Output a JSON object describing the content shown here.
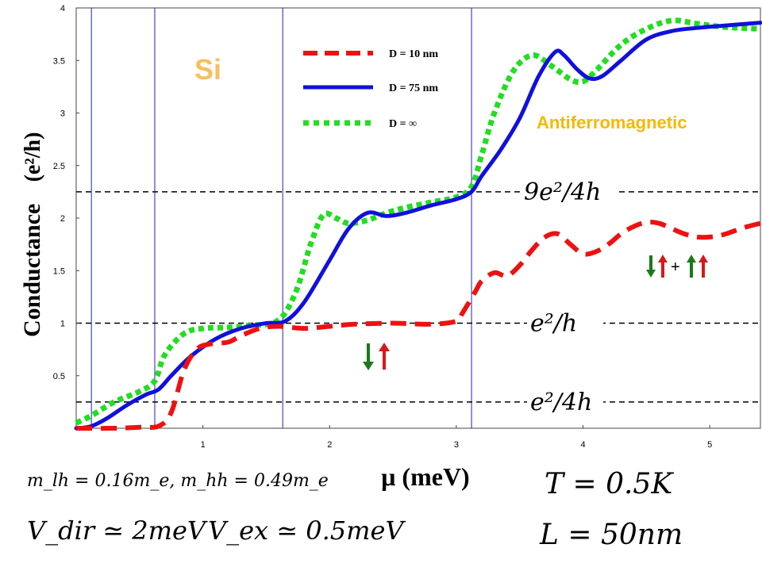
{
  "chart_data": {
    "type": "line",
    "ylabel": "Conductance",
    "ylabel_unit": "(e²/h)",
    "xlabel": "μ (meV)",
    "xlim": [
      0,
      5.4
    ],
    "ylim": [
      0,
      4
    ],
    "x_ticks": [
      1,
      2,
      3,
      4,
      5
    ],
    "y_ticks": [
      0.5,
      1,
      1.5,
      2,
      2.5,
      3,
      3.5,
      4
    ],
    "vertical_lines_x": [
      0.12,
      0.62,
      1.63,
      3.12
    ],
    "horizontal_lines": [
      {
        "y": 0.25,
        "label": "e²/4h"
      },
      {
        "y": 1.0,
        "label": "e²/h"
      },
      {
        "y": 2.25,
        "label": "9e²/4h"
      }
    ],
    "material_label": "Si",
    "phase_label": "Antiferromagnetic",
    "legend_position": "top-center",
    "series": [
      {
        "name": "D = 10 nm",
        "color": "#ee1111",
        "style": "dashed",
        "x": [
          0,
          0.3,
          0.5,
          0.65,
          0.75,
          0.85,
          0.95,
          1.05,
          1.2,
          1.3,
          1.45,
          1.6,
          1.8,
          2.0,
          2.2,
          2.5,
          2.8,
          3.0,
          3.05,
          3.15,
          3.2,
          3.3,
          3.4,
          3.5,
          3.6,
          3.7,
          3.8,
          3.9,
          4.0,
          4.1,
          4.2,
          4.3,
          4.4,
          4.5,
          4.6,
          4.7,
          4.8,
          4.9,
          5.0,
          5.1,
          5.2,
          5.3,
          5.4
        ],
        "y": [
          0,
          0,
          0.01,
          0.02,
          0.15,
          0.55,
          0.75,
          0.8,
          0.82,
          0.88,
          0.95,
          0.97,
          0.95,
          0.97,
          0.99,
          1.0,
          0.99,
          1.02,
          1.1,
          1.3,
          1.4,
          1.48,
          1.45,
          1.55,
          1.7,
          1.82,
          1.85,
          1.75,
          1.66,
          1.68,
          1.75,
          1.85,
          1.92,
          1.96,
          1.95,
          1.9,
          1.85,
          1.82,
          1.82,
          1.84,
          1.88,
          1.92,
          1.95
        ]
      },
      {
        "name": "D = 75 nm",
        "color": "#1010dd",
        "style": "solid",
        "x": [
          0,
          0.12,
          0.25,
          0.4,
          0.55,
          0.65,
          0.75,
          0.9,
          1.1,
          1.3,
          1.5,
          1.65,
          1.8,
          2.0,
          2.15,
          2.3,
          2.45,
          2.6,
          2.8,
          3.0,
          3.12,
          3.2,
          3.35,
          3.5,
          3.65,
          3.78,
          3.85,
          3.95,
          4.05,
          4.15,
          4.3,
          4.5,
          4.7,
          4.9,
          5.1,
          5.4
        ],
        "y": [
          0,
          0.02,
          0.1,
          0.22,
          0.32,
          0.37,
          0.5,
          0.68,
          0.85,
          0.95,
          1.0,
          1.02,
          1.2,
          1.6,
          1.9,
          2.05,
          2.02,
          2.05,
          2.12,
          2.18,
          2.25,
          2.4,
          2.65,
          2.95,
          3.35,
          3.58,
          3.55,
          3.42,
          3.33,
          3.35,
          3.5,
          3.7,
          3.78,
          3.81,
          3.83,
          3.86
        ]
      },
      {
        "name": "D = ∞",
        "color": "#22dd22",
        "style": "dotted",
        "x": [
          0,
          0.12,
          0.3,
          0.5,
          0.62,
          0.7,
          0.85,
          1.0,
          1.2,
          1.4,
          1.55,
          1.65,
          1.75,
          1.85,
          1.95,
          2.05,
          2.15,
          2.3,
          2.45,
          2.6,
          2.8,
          3.0,
          3.12,
          3.2,
          3.3,
          3.45,
          3.6,
          3.75,
          3.9,
          4.0,
          4.1,
          4.3,
          4.5,
          4.7,
          4.9,
          5.1,
          5.4
        ],
        "y": [
          0.05,
          0.12,
          0.25,
          0.35,
          0.45,
          0.7,
          0.9,
          0.95,
          0.96,
          0.98,
          1.0,
          1.1,
          1.35,
          1.75,
          2.03,
          2.0,
          1.95,
          1.98,
          2.05,
          2.1,
          2.15,
          2.2,
          2.3,
          2.6,
          3.0,
          3.4,
          3.55,
          3.45,
          3.32,
          3.3,
          3.4,
          3.65,
          3.8,
          3.88,
          3.85,
          3.82,
          3.8
        ]
      }
    ]
  },
  "annotations": {
    "mass": "m_lh = 0.16m_e, m_hh = 0.49m_e",
    "vdir": "V_dir ≃ 2meV",
    "vex": "V_ex ≃ 0.5meV",
    "temp": "T = 0.5K",
    "length": "L = 50nm",
    "plus": "+"
  }
}
